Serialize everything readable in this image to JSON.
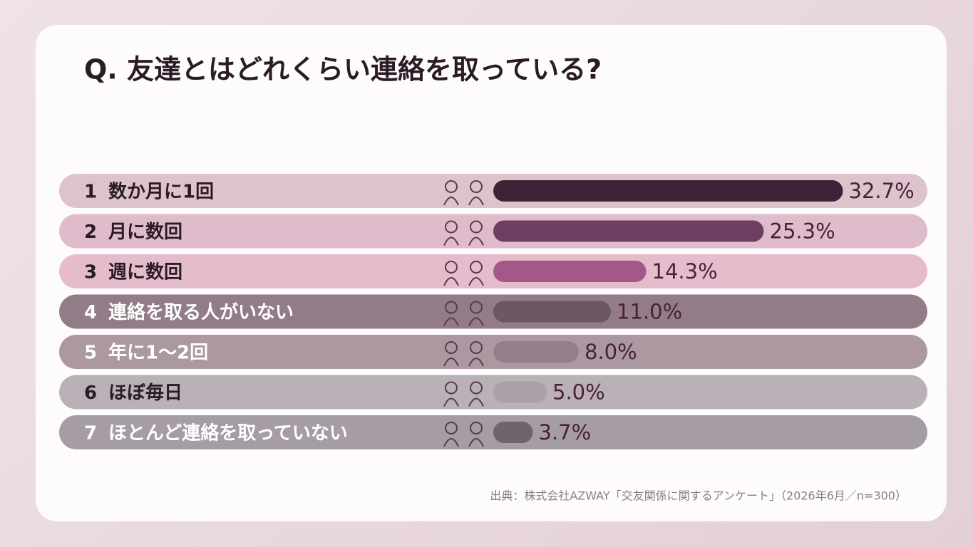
{
  "chart_data": {
    "type": "bar",
    "title": "Q. 友達とはどれくらい連絡を取っている?",
    "ranks": [
      1,
      2,
      3,
      4,
      5,
      6,
      7
    ],
    "categories": [
      "数か月に1回",
      "月に数回",
      "週に数回",
      "連絡を取る人がいない",
      "年に1〜2回",
      "ほぼ毎日",
      "ほとんど連絡を取っていない"
    ],
    "values": [
      32.7,
      25.3,
      14.3,
      11.0,
      8.0,
      5.0,
      3.7
    ],
    "value_labels": [
      "32.7%",
      "25.3%",
      "14.3%",
      "11.0%",
      "8.0%",
      "5.0%",
      "3.7%"
    ],
    "colors": [
      "#3d2335",
      "#6e3f62",
      "#a45888",
      "#6d5763",
      "#957f8b",
      "#a8a0a6",
      "#6e6469"
    ],
    "source": "出典：株式会社AZWAY「交友関係に関するアンケート」（2026年6月／n=300）"
  }
}
